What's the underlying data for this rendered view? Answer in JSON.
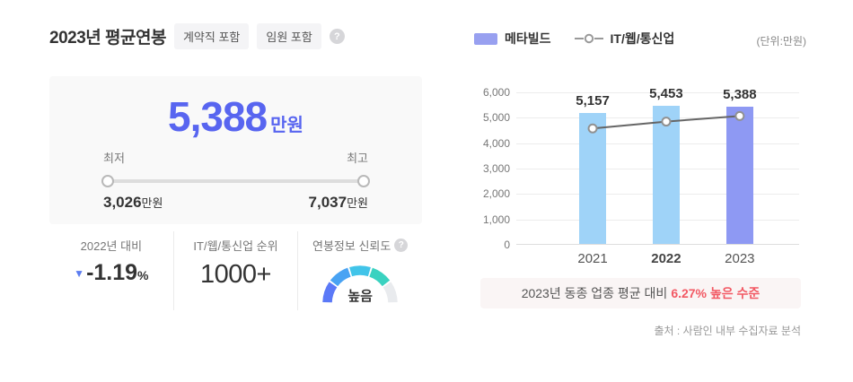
{
  "header": {
    "title": "2023년 평균연봉",
    "badges": [
      "계약직 포함",
      "임원 포함"
    ],
    "help_icon": "?"
  },
  "summary": {
    "value": "5,388",
    "unit": "만원",
    "min_label": "최저",
    "max_label": "최고",
    "min_value": "3,026",
    "min_unit": "만원",
    "max_value": "7,037",
    "max_unit": "만원",
    "accent_color": "#5865f0"
  },
  "stats": {
    "yoy": {
      "label": "2022년 대비",
      "arrow": "▼",
      "direction": "down",
      "value": "-1.19",
      "unit": "%",
      "arrow_color": "#5b7cf0"
    },
    "rank": {
      "label": "IT/웹/통신업 순위",
      "value": "1000+"
    },
    "reliability": {
      "label": "연봉정보 신뢰도",
      "help_icon": "?",
      "level": "높음",
      "gauge_colors": [
        "#5b79f7",
        "#49a3f3",
        "#41c4e9",
        "#3ad2c0",
        "#e9ebee"
      ]
    }
  },
  "chart": {
    "legend": [
      {
        "type": "bar",
        "label": "메타빌드",
        "color": "#98a0f0"
      },
      {
        "type": "line",
        "label": "IT/웹/통신업",
        "color": "#666666"
      }
    ],
    "unit_note": "(단위:만원)",
    "caption": {
      "prefix": "2023년 동종 업종 평균 대비",
      "highlight": "6.27% 높은 수준"
    },
    "chart_data": {
      "type": "bar+line",
      "categories": [
        "2021",
        "2022",
        "2023"
      ],
      "categories_bold": [
        "2022"
      ],
      "series": [
        {
          "name": "메타빌드",
          "type": "bar",
          "values": [
            5157,
            5453,
            5388
          ],
          "labels": [
            "5,157",
            "5,453",
            "5,388"
          ],
          "colors": [
            "#9fd3f8",
            "#9fd3f8",
            "#8e99f3"
          ]
        },
        {
          "name": "IT/웹/통신업",
          "type": "line",
          "values": [
            4580,
            4850,
            5070
          ],
          "color": "#666666",
          "marker_stroke": "#919191"
        }
      ],
      "ylim": [
        0,
        6000
      ],
      "ytick_step": 1000,
      "yticks": [
        "0",
        "1,000",
        "2,000",
        "3,000",
        "4,000",
        "5,000",
        "6,000"
      ],
      "grid": true,
      "legend_position": "top",
      "unit": "만원"
    }
  },
  "source": "출처 : 사람인 내부 수집자료 분석"
}
